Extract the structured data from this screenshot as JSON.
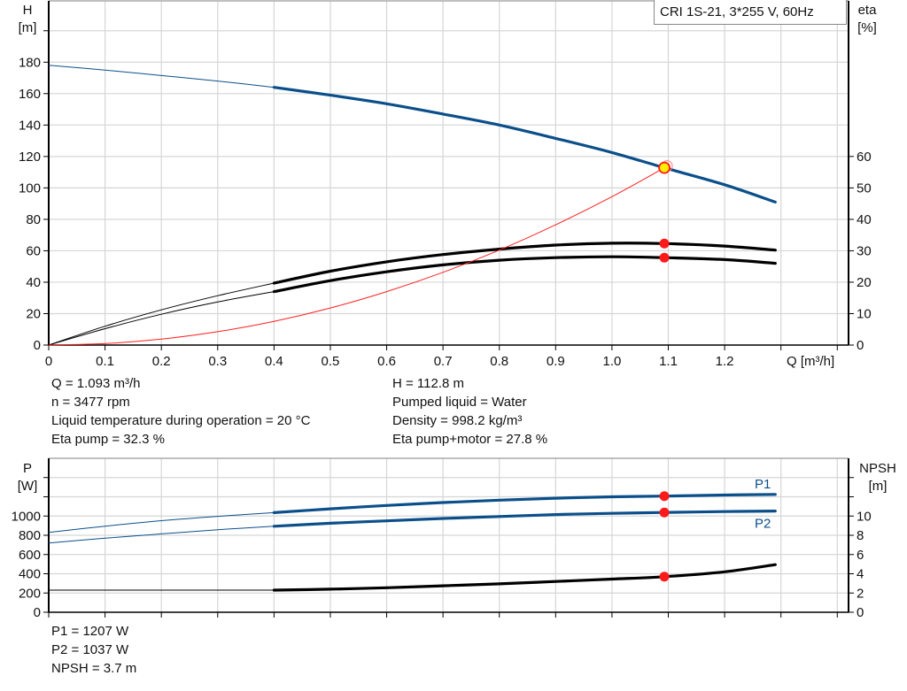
{
  "chart_data": [
    {
      "type": "line",
      "legend_title": "CRI 1S-21, 3*255 V, 60Hz",
      "xlabel": "Q [m³/h]",
      "ylabel_left": [
        "H",
        "[m]"
      ],
      "ylabel_right": [
        "eta",
        "[%]"
      ],
      "xlim": [
        0,
        1.42
      ],
      "ylim_left": [
        0,
        219
      ],
      "ylim_right": [
        0,
        109.5
      ],
      "grid": true,
      "x_ticks": [
        "0",
        "0.1",
        "0.2",
        "0.3",
        "0.4",
        "0.5",
        "0.6",
        "0.7",
        "0.8",
        "0.9",
        "1.0",
        "1.1",
        "1.2"
      ],
      "y_left_ticks": [
        "0",
        "20",
        "40",
        "60",
        "80",
        "100",
        "120",
        "140",
        "160",
        "180"
      ],
      "y_right_ticks": [
        "0",
        "10",
        "20",
        "30",
        "40",
        "50",
        "60"
      ],
      "series": [
        {
          "key": "H",
          "axis": "left",
          "color": "#0b4f8a",
          "thin": {
            "x": [
              0,
              0.1,
              0.2,
              0.3,
              0.4
            ],
            "y": [
              178,
              175,
              171.5,
              168,
              164
            ]
          },
          "thick": {
            "x": [
              0.4,
              0.5,
              0.6,
              0.7,
              0.8,
              0.9,
              1.0,
              1.093,
              1.2,
              1.29
            ],
            "y": [
              164,
              159,
              153.5,
              147,
              140,
              131.5,
              122.5,
              112.8,
              102,
              91
            ]
          }
        },
        {
          "key": "eta_pump",
          "axis": "right",
          "color": "#000000",
          "thin": {
            "x": [
              0,
              0.1,
              0.2,
              0.3,
              0.4
            ],
            "y": [
              0,
              6,
              11.2,
              15.7,
              19.7
            ]
          },
          "thick": {
            "x": [
              0.4,
              0.5,
              0.6,
              0.7,
              0.8,
              0.9,
              1.0,
              1.093,
              1.2,
              1.29
            ],
            "y": [
              19.7,
              23.5,
              26.5,
              28.8,
              30.5,
              31.8,
              32.4,
              32.3,
              31.5,
              30.2
            ]
          }
        },
        {
          "key": "eta_pump_motor",
          "axis": "right",
          "color": "#000000",
          "thin": {
            "x": [
              0,
              0.1,
              0.2,
              0.3,
              0.4
            ],
            "y": [
              0,
              5.2,
              9.8,
              13.7,
              17
            ]
          },
          "thick": {
            "x": [
              0.4,
              0.5,
              0.6,
              0.7,
              0.8,
              0.9,
              1.0,
              1.093,
              1.2,
              1.29
            ],
            "y": [
              17,
              20.5,
              23.3,
              25.5,
              27,
              27.8,
              28.1,
              27.8,
              27.2,
              26
            ]
          }
        },
        {
          "key": "system_curve",
          "axis": "left",
          "color": "#ff2020",
          "x": [
            0,
            0.1,
            0.2,
            0.3,
            0.4,
            0.5,
            0.6,
            0.7,
            0.8,
            0.9,
            1.0,
            1.093
          ],
          "y": [
            0,
            0.94,
            3.78,
            8.5,
            15.1,
            23.6,
            34,
            46.3,
            60.4,
            76.5,
            94.4,
            112.8
          ]
        }
      ],
      "duty_point": {
        "q": 1.093,
        "H": 112.8,
        "eta_pump": 32.3,
        "eta_pump_motor": 27.8,
        "marker_color": "#ffee00"
      }
    },
    {
      "type": "line",
      "ylabel_left": [
        "P",
        "[W]"
      ],
      "ylabel_right": [
        "NPSH",
        "[m]"
      ],
      "xlim": [
        0,
        1.42
      ],
      "ylim_left": [
        0,
        1600
      ],
      "ylim_right": [
        0,
        16
      ],
      "grid": true,
      "y_left_ticks": [
        "0",
        "200",
        "400",
        "600",
        "800",
        "1000"
      ],
      "y_right_ticks": [
        "0",
        "2",
        "4",
        "6",
        "8",
        "10"
      ],
      "series": [
        {
          "key": "P1",
          "name": "P1",
          "axis": "left",
          "color": "#0b4f8a",
          "thin": {
            "x": [
              0,
              0.1,
              0.2,
              0.3,
              0.4
            ],
            "y": [
              829,
              895,
              952,
              997,
              1035
            ]
          },
          "thick": {
            "x": [
              0.4,
              0.5,
              0.6,
              0.7,
              0.8,
              0.9,
              1.0,
              1.093,
              1.2,
              1.29
            ],
            "y": [
              1035,
              1075,
              1110,
              1140,
              1165,
              1185,
              1200,
              1207,
              1218,
              1225
            ]
          }
        },
        {
          "key": "P2",
          "name": "P2",
          "axis": "left",
          "color": "#0b4f8a",
          "thin": {
            "x": [
              0,
              0.1,
              0.2,
              0.3,
              0.4
            ],
            "y": [
              719,
              770,
              815,
              858,
              894
            ]
          },
          "thick": {
            "x": [
              0.4,
              0.5,
              0.6,
              0.7,
              0.8,
              0.9,
              1.0,
              1.093,
              1.2,
              1.29
            ],
            "y": [
              894,
              925,
              950,
              975,
              995,
              1015,
              1028,
              1037,
              1046,
              1052
            ]
          }
        },
        {
          "key": "NPSH",
          "axis": "right",
          "color": "#000000",
          "thin": {
            "x": [
              0,
              0.4
            ],
            "y": [
              2.3,
              2.3
            ]
          },
          "thick": {
            "x": [
              0.4,
              0.5,
              0.6,
              0.7,
              0.8,
              0.9,
              1.0,
              1.093,
              1.2,
              1.29
            ],
            "y": [
              2.3,
              2.4,
              2.55,
              2.75,
              2.95,
              3.2,
              3.45,
              3.7,
              4.2,
              4.95
            ]
          }
        }
      ],
      "duty_point": {
        "q": 1.093,
        "P1": 1207,
        "P2": 1037,
        "NPSH": 3.7
      }
    }
  ],
  "info_top": {
    "left": [
      "Q = 1.093 m³/h",
      "n = 3477 rpm",
      "Liquid temperature during operation = 20 °C",
      "Eta pump = 32.3 %"
    ],
    "right": [
      "H = 112.8 m",
      "Pumped liquid = Water",
      "Density = 998.2 kg/m³",
      "Eta pump+motor = 27.8 %"
    ]
  },
  "info_bottom": [
    "P1 = 1207 W",
    "P2 = 1037 W",
    "NPSH = 3.7 m"
  ]
}
